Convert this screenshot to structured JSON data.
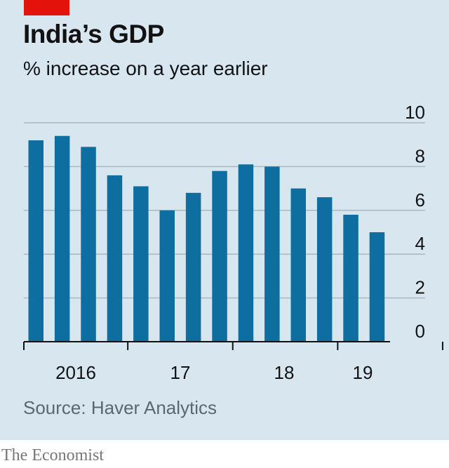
{
  "header": {
    "title": "India’s GDP",
    "subtitle": "% increase on a year earlier"
  },
  "chart_data": {
    "type": "bar",
    "title": "India’s GDP",
    "subtitle": "% increase on a year earlier",
    "xlabel": "",
    "ylabel": "",
    "ylim": [
      0,
      10
    ],
    "yticks": [
      0,
      2,
      4,
      6,
      8,
      10
    ],
    "grid": true,
    "bar_color": "#0f6ea0",
    "categories": [
      "2016 Q1",
      "2016 Q2",
      "2016 Q3",
      "2016 Q4",
      "2017 Q1",
      "2017 Q2",
      "2017 Q3",
      "2017 Q4",
      "2018 Q1",
      "2018 Q2",
      "2018 Q3",
      "2018 Q4",
      "2019 Q1",
      "2019 Q2"
    ],
    "values": [
      9.2,
      9.4,
      8.9,
      7.6,
      7.1,
      6.0,
      6.8,
      7.8,
      8.1,
      8.0,
      7.0,
      6.6,
      5.8,
      5.0
    ],
    "x_tick_labels": [
      "2016",
      "17",
      "18",
      "19"
    ]
  },
  "footer": {
    "source": "Source: Haver Analytics",
    "brand": "The Economist"
  }
}
